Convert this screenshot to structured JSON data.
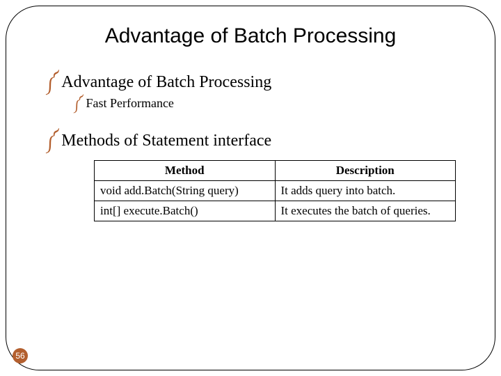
{
  "title": "Advantage of Batch Processing",
  "bullets": {
    "b1": "Advantage of Batch Processing",
    "b1_sub1": "Fast Performance",
    "b2": "Methods of Statement interface"
  },
  "bullet_glyph": "༼",
  "table": {
    "headers": {
      "method": "Method",
      "description": "Description"
    },
    "rows": [
      {
        "method": "void add.Batch(String query)",
        "description": "It adds query into batch."
      },
      {
        "method": "int[] execute.Batch()",
        "description": "It executes the batch of queries."
      }
    ]
  },
  "page_number": "56",
  "colors": {
    "accent": "#b35f2e",
    "border": "#000000",
    "background": "#ffffff",
    "text": "#000000"
  }
}
